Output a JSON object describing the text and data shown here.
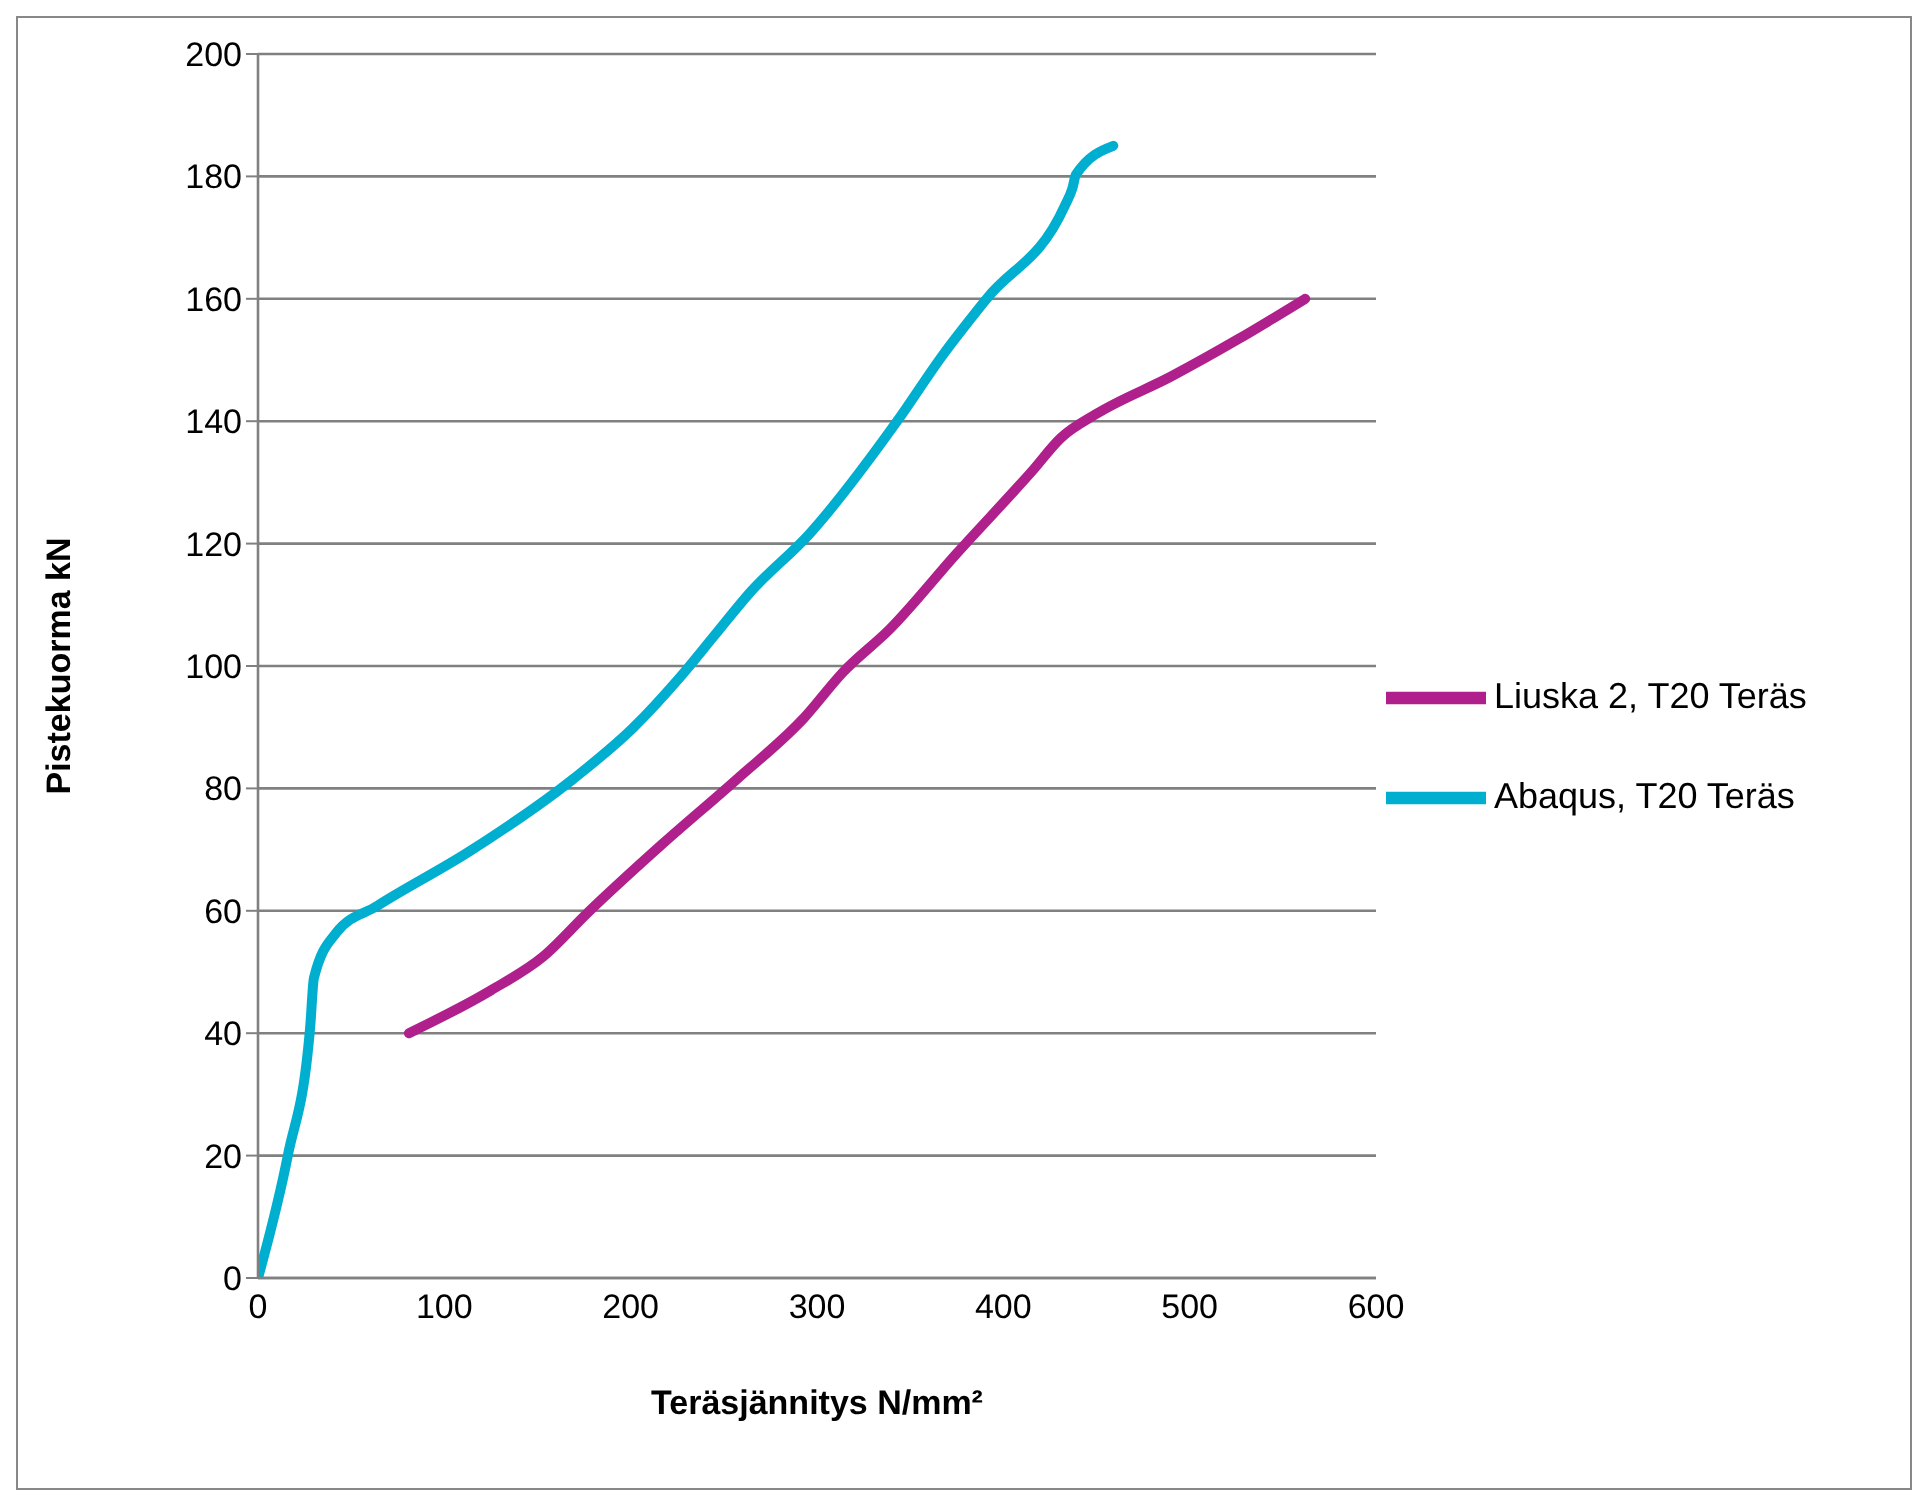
{
  "chart_data": {
    "type": "line",
    "xlabel": "Teräsjännitys N/mm²",
    "ylabel": "Pistekuorma kN",
    "xlim": [
      0,
      600
    ],
    "xticks": [
      0,
      100,
      200,
      300,
      400,
      500,
      600
    ],
    "ylim": [
      0,
      200
    ],
    "yticks": [
      0,
      20,
      40,
      60,
      80,
      100,
      120,
      140,
      160,
      180,
      200
    ],
    "grid": "y",
    "legend": "right",
    "marker": "none",
    "line_style": "solid",
    "series": [
      {
        "name": "Liuska 2, T20 Teräs",
        "color": "#b0208c",
        "x": [
          81,
          125,
          153,
          177,
          217,
          257,
          293,
          314,
          339,
          375,
          415,
          431,
          450,
          490,
          526,
          562
        ],
        "values": [
          40,
          47,
          52.5,
          59.7,
          70.9,
          81.5,
          91.5,
          99,
          106,
          118.4,
          131.7,
          137.3,
          141.2,
          147.3,
          153.4,
          160
        ]
      },
      {
        "name": "Abaqus, T20 Teräs",
        "color": "#00afd0",
        "x": [
          0,
          16,
          28,
          30,
          42,
          64,
          114,
          169,
          201,
          226,
          245,
          264,
          296,
          343,
          367,
          391,
          433,
          437,
          439,
          459
        ],
        "values": [
          0,
          20,
          41,
          49,
          56.4,
          60.8,
          69.8,
          81.5,
          89.8,
          98,
          105,
          112,
          121.6,
          140,
          150.6,
          160,
          175.2,
          178,
          180.3,
          185
        ]
      }
    ]
  }
}
